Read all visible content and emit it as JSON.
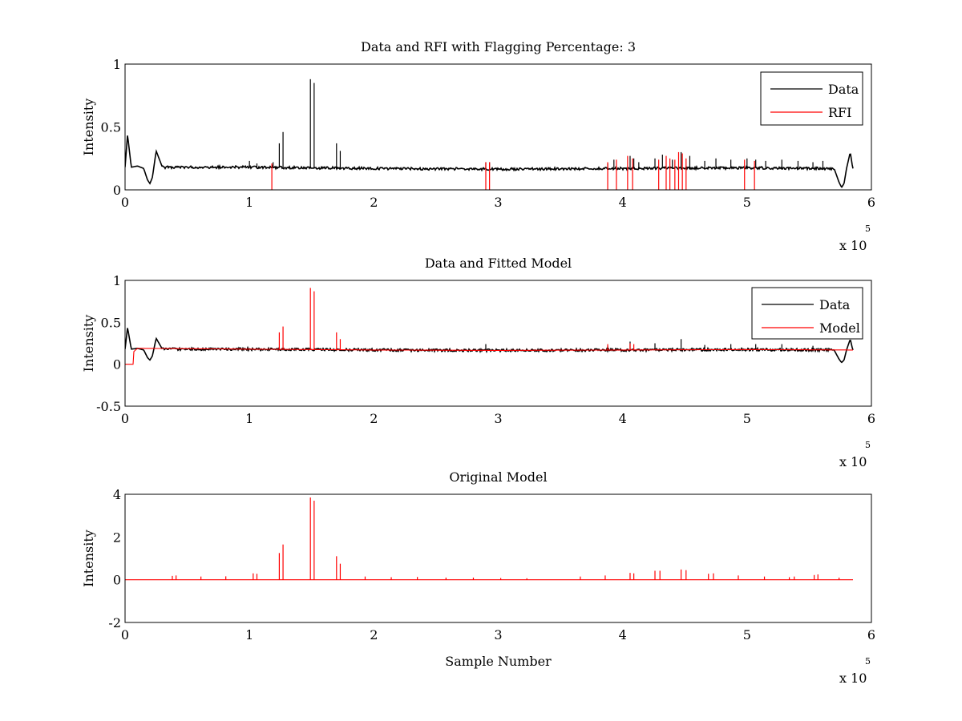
{
  "figure": {
    "background": "#ffffff",
    "colors": {
      "data": "#000000",
      "rfi": "#ff0000",
      "model": "#ff0000"
    }
  },
  "chart_data": [
    {
      "type": "line",
      "title": "Data and RFI with Flagging Percentage: 3",
      "xlabel": "",
      "ylabel": "Intensity",
      "xlim": [
        0,
        600000
      ],
      "ylim": [
        0,
        1
      ],
      "xticks": [
        0,
        1,
        2,
        3,
        4,
        5,
        6
      ],
      "yticks": [
        0,
        0.5,
        1
      ],
      "ytick_labels": [
        "0",
        "0.5",
        "1"
      ],
      "x_exponent_base": "x 10",
      "x_exponent": "5",
      "legend": {
        "position": "top-right",
        "entries": [
          "Data",
          "RFI"
        ]
      },
      "series": [
        {
          "name": "Data",
          "color": "#000000",
          "baseline": {
            "x": [
              0,
              2000,
              5000,
              10000,
              15000,
              18000,
              20000,
              22000,
              25000,
              30000,
              100000,
              200000,
              300000,
              400000,
              500000,
              570000,
              574000,
              576000,
              578000,
              580000,
              583000,
              585000
            ],
            "y": [
              0.18,
              0.44,
              0.18,
              0.19,
              0.17,
              0.08,
              0.05,
              0.1,
              0.31,
              0.18,
              0.18,
              0.17,
              0.165,
              0.17,
              0.175,
              0.17,
              0.06,
              0.02,
              0.05,
              0.17,
              0.3,
              0.17
            ]
          },
          "noise_start": 30000,
          "noise_end": 570000,
          "spikes": [
            [
              100000,
              0.23
            ],
            [
              106000,
              0.21
            ],
            [
              119000,
              0.22
            ],
            [
              124000,
              0.37
            ],
            [
              127000,
              0.46
            ],
            [
              149000,
              0.88
            ],
            [
              152000,
              0.85
            ],
            [
              170000,
              0.37
            ],
            [
              173000,
              0.31
            ],
            [
              290000,
              0.22
            ],
            [
              293000,
              0.22
            ],
            [
              388000,
              0.21
            ],
            [
              393000,
              0.24
            ],
            [
              406000,
              0.27
            ],
            [
              409000,
              0.25
            ],
            [
              413000,
              0.22
            ],
            [
              426000,
              0.25
            ],
            [
              432000,
              0.28
            ],
            [
              440000,
              0.24
            ],
            [
              447000,
              0.3
            ],
            [
              454000,
              0.27
            ],
            [
              466000,
              0.23
            ],
            [
              475000,
              0.25
            ],
            [
              487000,
              0.24
            ],
            [
              500000,
              0.25
            ],
            [
              507000,
              0.24
            ],
            [
              515000,
              0.23
            ],
            [
              528000,
              0.24
            ],
            [
              541000,
              0.23
            ],
            [
              553000,
              0.22
            ],
            [
              561000,
              0.23
            ]
          ]
        },
        {
          "name": "RFI",
          "color": "#ff0000",
          "spikes": [
            [
              118000,
              0.21
            ],
            [
              290000,
              0.22
            ],
            [
              293000,
              0.22
            ],
            [
              388000,
              0.22
            ],
            [
              395000,
              0.24
            ],
            [
              404000,
              0.27
            ],
            [
              408000,
              0.25
            ],
            [
              429000,
              0.24
            ],
            [
              435000,
              0.27
            ],
            [
              438000,
              0.25
            ],
            [
              442000,
              0.24
            ],
            [
              445000,
              0.3
            ],
            [
              448000,
              0.29
            ],
            [
              451000,
              0.25
            ],
            [
              498000,
              0.24
            ],
            [
              506000,
              0.23
            ]
          ]
        }
      ]
    },
    {
      "type": "line",
      "title": "Data and Fitted Model",
      "xlabel": "",
      "ylabel": "Intensity",
      "xlim": [
        0,
        600000
      ],
      "ylim": [
        -0.5,
        1
      ],
      "xticks": [
        0,
        1,
        2,
        3,
        4,
        5,
        6
      ],
      "yticks": [
        -0.5,
        0,
        0.5,
        1
      ],
      "ytick_labels": [
        "-0.5",
        "0",
        "0.5",
        "1"
      ],
      "x_exponent_base": "x 10",
      "x_exponent": "5",
      "legend": {
        "position": "top-right",
        "entries": [
          "Data",
          "Model"
        ]
      },
      "series": [
        {
          "name": "Data",
          "color": "#000000",
          "baseline": {
            "x": [
              0,
              2000,
              5000,
              10000,
              15000,
              18000,
              20000,
              22000,
              25000,
              30000,
              100000,
              200000,
              300000,
              400000,
              500000,
              570000,
              574000,
              576000,
              578000,
              580000,
              583000,
              585000
            ],
            "y": [
              0.18,
              0.44,
              0.18,
              0.19,
              0.17,
              0.08,
              0.05,
              0.1,
              0.31,
              0.18,
              0.18,
              0.17,
              0.165,
              0.17,
              0.175,
              0.17,
              0.06,
              0.02,
              0.05,
              0.17,
              0.3,
              0.17
            ]
          },
          "noise_start": 30000,
          "noise_end": 570000,
          "spikes": [
            [
              290000,
              0.24
            ],
            [
              388000,
              0.22
            ],
            [
              406000,
              0.27
            ],
            [
              426000,
              0.25
            ],
            [
              447000,
              0.3
            ],
            [
              466000,
              0.23
            ],
            [
              487000,
              0.24
            ],
            [
              507000,
              0.24
            ],
            [
              528000,
              0.24
            ],
            [
              553000,
              0.22
            ]
          ]
        },
        {
          "name": "Model",
          "color": "#ff0000",
          "baseline": {
            "x": [
              0,
              7000,
              7000,
              10000,
              100000,
              200000,
              300000,
              400000,
              500000,
              585000
            ],
            "y": [
              0,
              0,
              0.15,
              0.19,
              0.18,
              0.17,
              0.165,
              0.17,
              0.175,
              0.17
            ]
          },
          "spikes": [
            [
              124000,
              0.38
            ],
            [
              127000,
              0.45
            ],
            [
              149000,
              0.91
            ],
            [
              152000,
              0.87
            ],
            [
              170000,
              0.38
            ],
            [
              173000,
              0.3
            ],
            [
              388000,
              0.24
            ],
            [
              406000,
              0.25
            ],
            [
              409000,
              0.24
            ]
          ]
        }
      ]
    },
    {
      "type": "line",
      "title": "Original Model",
      "xlabel": "Sample Number",
      "ylabel": "Intensity",
      "xlim": [
        0,
        600000
      ],
      "ylim": [
        -2,
        4
      ],
      "xticks": [
        0,
        1,
        2,
        3,
        4,
        5,
        6
      ],
      "yticks": [
        -2,
        0,
        2,
        4
      ],
      "ytick_labels": [
        "-2",
        "0",
        "2",
        "4"
      ],
      "x_exponent_base": "x 10",
      "x_exponent": "5",
      "legend": null,
      "series": [
        {
          "name": "",
          "color": "#ff0000",
          "baseline": {
            "x": [
              0,
              585000
            ],
            "y": [
              0,
              0
            ]
          },
          "spikes": [
            [
              124000,
              1.25
            ],
            [
              127000,
              1.65
            ],
            [
              149000,
              3.85
            ],
            [
              152000,
              3.7
            ],
            [
              170000,
              1.1
            ],
            [
              173000,
              0.75
            ],
            [
              38000,
              0.18
            ],
            [
              41000,
              0.2
            ],
            [
              61000,
              0.15
            ],
            [
              81000,
              0.16
            ],
            [
              103000,
              0.3
            ],
            [
              106000,
              0.28
            ],
            [
              193000,
              0.15
            ],
            [
              214000,
              0.12
            ],
            [
              235000,
              0.13
            ],
            [
              258000,
              0.1
            ],
            [
              280000,
              0.1
            ],
            [
              302000,
              0.08
            ],
            [
              323000,
              0.07
            ],
            [
              366000,
              0.15
            ],
            [
              386000,
              0.2
            ],
            [
              406000,
              0.32
            ],
            [
              409000,
              0.3
            ],
            [
              426000,
              0.42
            ],
            [
              430000,
              0.42
            ],
            [
              447000,
              0.48
            ],
            [
              451000,
              0.45
            ],
            [
              469000,
              0.28
            ],
            [
              473000,
              0.3
            ],
            [
              493000,
              0.2
            ],
            [
              514000,
              0.15
            ],
            [
              534000,
              0.12
            ],
            [
              538000,
              0.15
            ],
            [
              554000,
              0.22
            ],
            [
              557000,
              0.25
            ],
            [
              574000,
              0.1
            ]
          ]
        }
      ]
    }
  ]
}
